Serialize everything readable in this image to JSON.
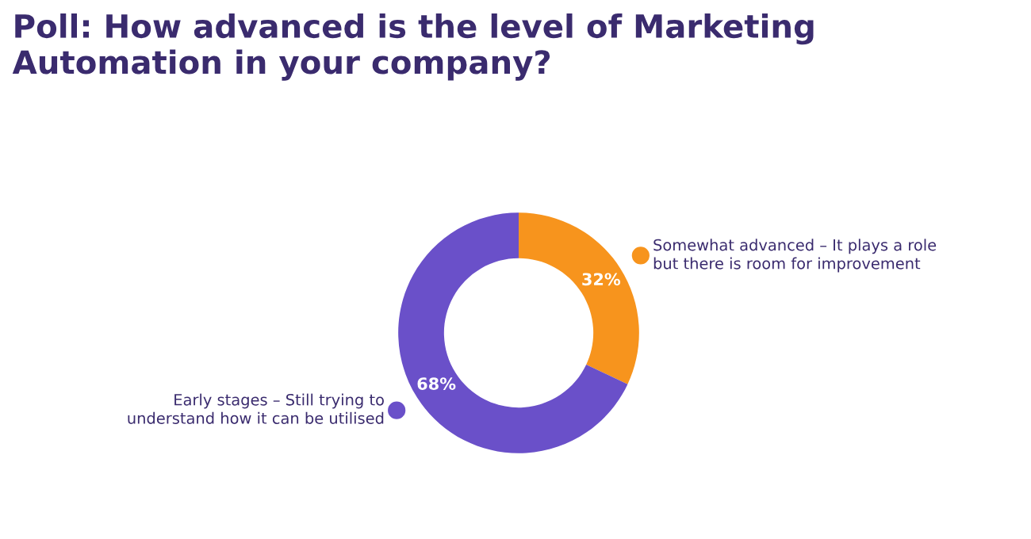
{
  "chart_data": {
    "type": "donut",
    "title": "Poll: How advanced is the level of Marketing Automation in your company?",
    "categories": [
      "Somewhat advanced – It plays a role but there is room for improvement",
      "Early stages – Still trying to understand how it can be utilised"
    ],
    "values": [
      32,
      68
    ],
    "colors": [
      "#f7941d",
      "#6a50c9"
    ],
    "value_labels": [
      "32%",
      "68%"
    ]
  }
}
